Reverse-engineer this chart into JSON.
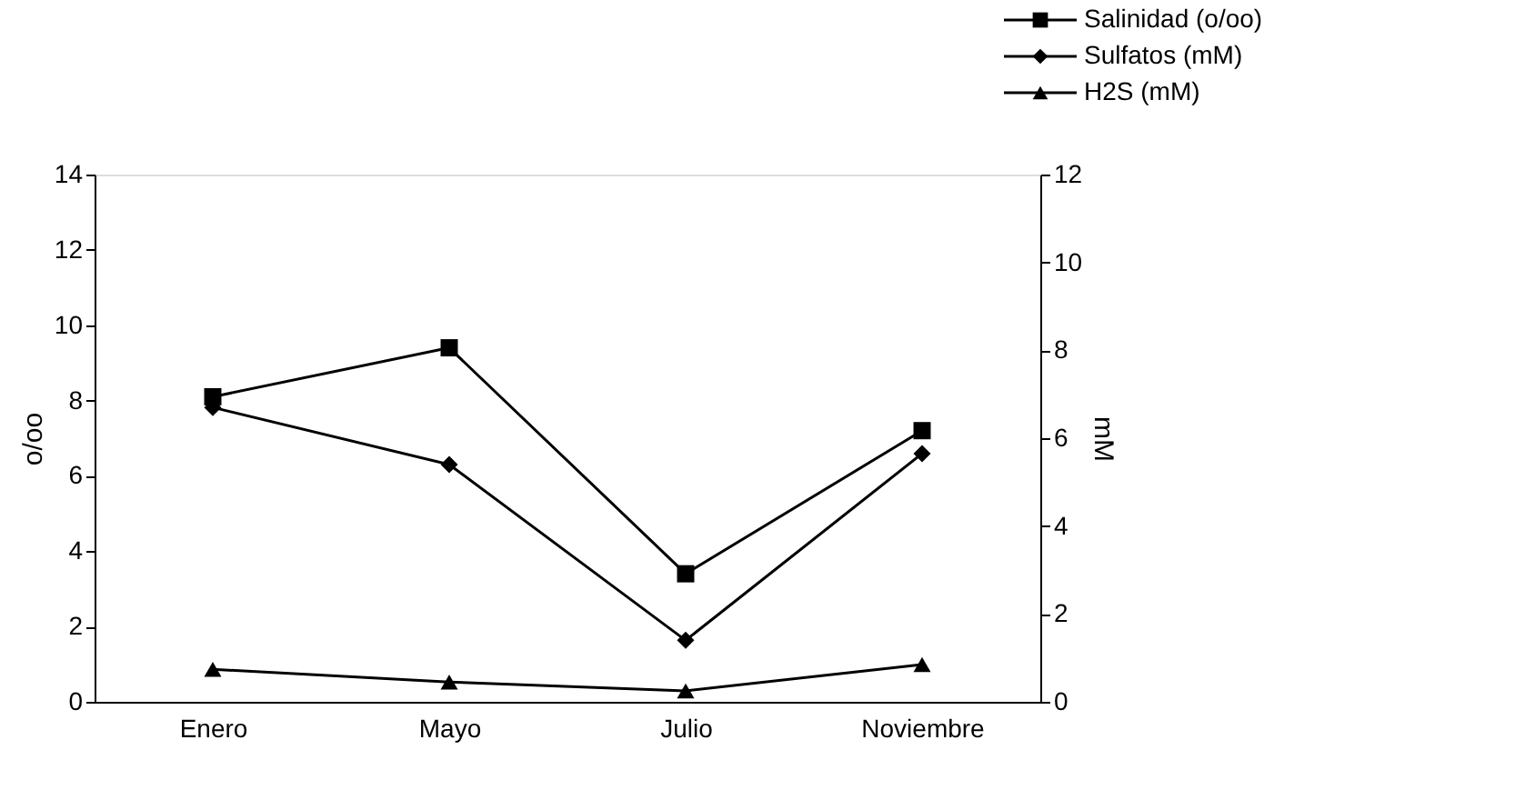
{
  "chart_data": {
    "type": "line",
    "categories": [
      "Enero",
      "Mayo",
      "Julio",
      "Noviembre"
    ],
    "ylabel": "o/oo",
    "y2label": "mM",
    "ylim": [
      0,
      14
    ],
    "yticks": [
      0,
      2,
      4,
      6,
      8,
      10,
      12,
      14
    ],
    "y2lim": [
      0,
      12
    ],
    "y2ticks": [
      0,
      2,
      4,
      6,
      8,
      10,
      12
    ],
    "grid": false,
    "legend": "top right",
    "line_style": "solid",
    "series": [
      {
        "name": "Salinidad (o/oo)",
        "color": "#000000",
        "marker": "square",
        "values": [
          8.1,
          9.4,
          3.4,
          7.2
        ]
      },
      {
        "name": "Sulfatos (mM)",
        "color": "#000000",
        "marker": "diamond",
        "axis": "y2",
        "values": [
          6.7,
          5.4,
          1.4,
          5.65
        ]
      },
      {
        "name": "H2S (mM)",
        "color": "#000000",
        "marker": "triangle",
        "axis": "y2",
        "values": [
          0.74,
          0.45,
          0.25,
          0.85
        ]
      }
    ]
  }
}
